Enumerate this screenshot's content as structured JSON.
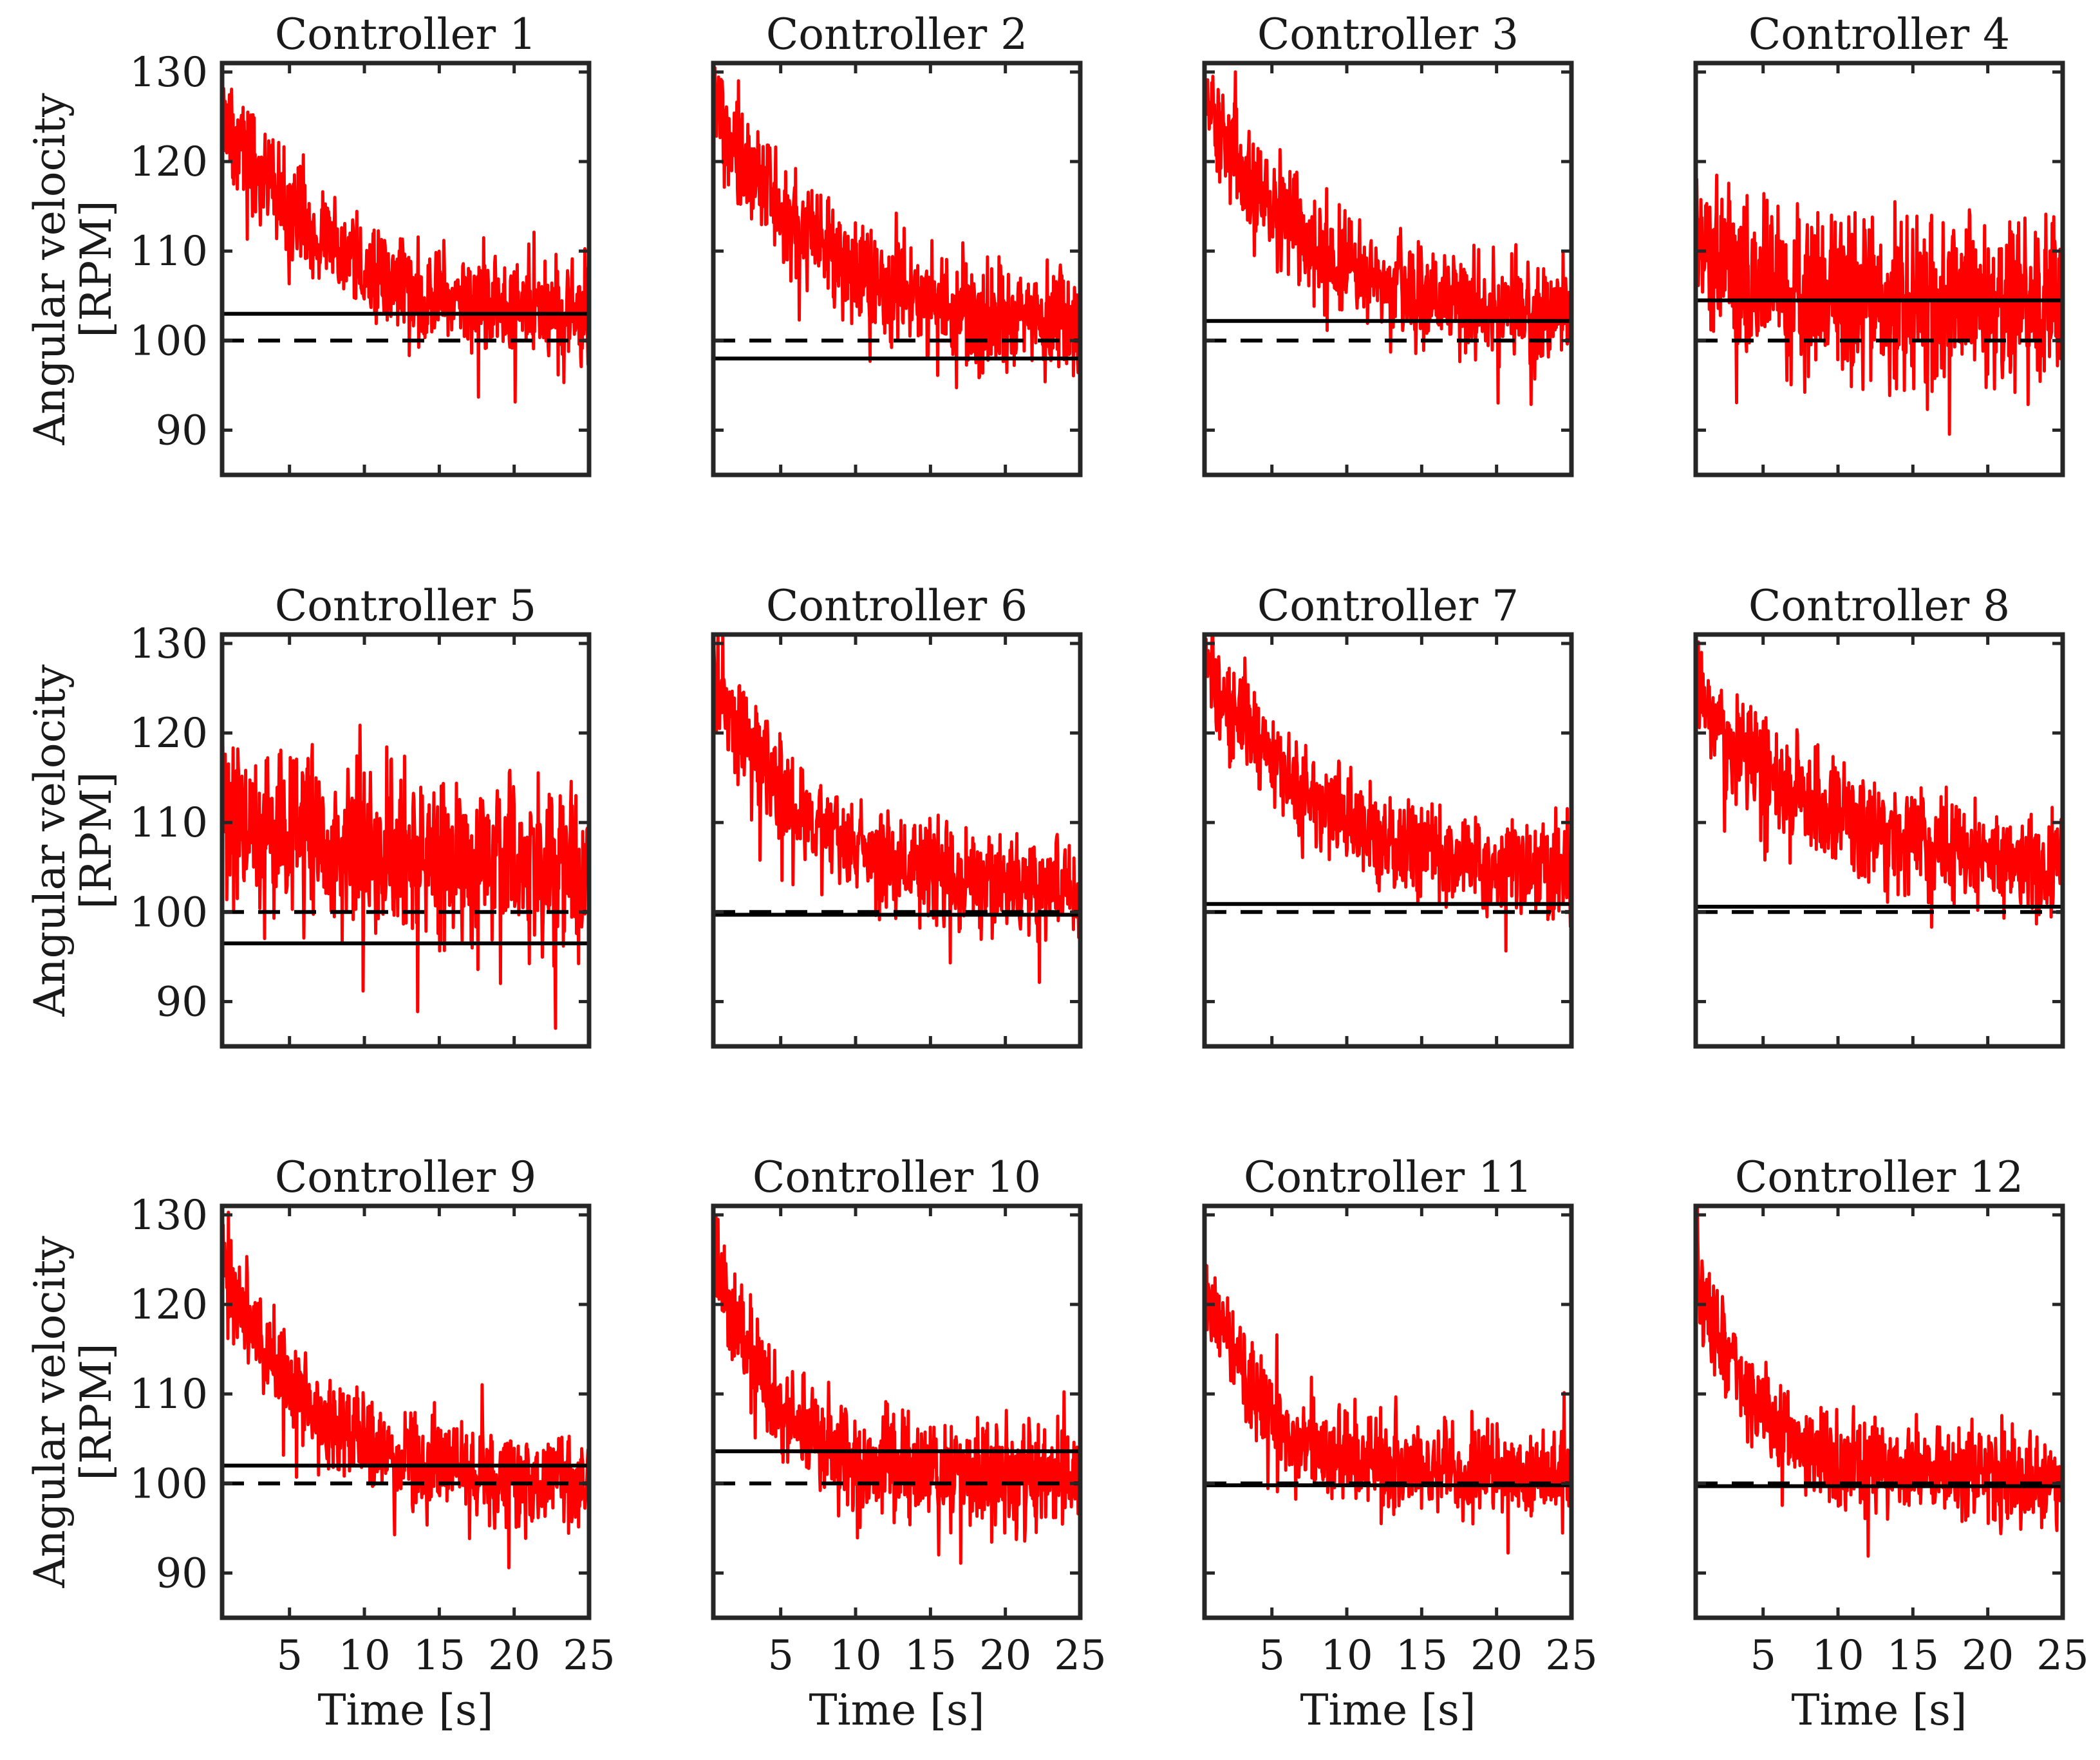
{
  "chart_data": {
    "type": "line",
    "layout": "grid 3 rows x 4 columns",
    "x_label": "Time [s]",
    "y_label_line1": "Angular velocity",
    "y_label_line2": "[RPM]",
    "xlim": [
      0.5,
      25
    ],
    "ylim": [
      85,
      131
    ],
    "x_ticks": [
      5,
      10,
      15,
      20,
      25
    ],
    "y_ticks": [
      90,
      100,
      110,
      120,
      130
    ],
    "setpoint": 100,
    "colors": {
      "trace": "#ff0000",
      "reference": "#000000"
    },
    "panels": [
      {
        "title": "Controller 1",
        "start": 126,
        "steady": 102,
        "tau": 7,
        "noise": 2.6,
        "final_value": 103.0
      },
      {
        "title": "Controller 2",
        "start": 127,
        "steady": 101,
        "tau": 7,
        "noise": 2.8,
        "final_value": 98.0
      },
      {
        "title": "Controller 3",
        "start": 127,
        "steady": 102,
        "tau": 7,
        "noise": 2.8,
        "final_value": 102.2
      },
      {
        "title": "Controller 4",
        "start": 113,
        "steady": 104,
        "tau": 3,
        "noise": 4.5,
        "final_value": 104.5
      },
      {
        "title": "Controller 5",
        "start": 111,
        "steady": 104,
        "tau": 12,
        "noise": 4.5,
        "final_value": 96.5
      },
      {
        "title": "Controller 6",
        "start": 127,
        "steady": 102,
        "tau": 6,
        "noise": 2.6,
        "final_value": 99.7
      },
      {
        "title": "Controller 7",
        "start": 127,
        "steady": 103,
        "tau": 8,
        "noise": 2.6,
        "final_value": 100.9
      },
      {
        "title": "Controller 8",
        "start": 124,
        "steady": 104,
        "tau": 9,
        "noise": 2.6,
        "final_value": 100.6
      },
      {
        "title": "Controller 9",
        "start": 125,
        "steady": 100,
        "tau": 5.5,
        "noise": 2.6,
        "final_value": 102.0
      },
      {
        "title": "Controller 10",
        "start": 127,
        "steady": 101,
        "tau": 3.5,
        "noise": 2.8,
        "final_value": 103.6
      },
      {
        "title": "Controller 11",
        "start": 123,
        "steady": 101,
        "tau": 4,
        "noise": 2.4,
        "final_value": 99.8
      },
      {
        "title": "Controller 12",
        "start": 124,
        "steady": 100.5,
        "tau": 4,
        "noise": 2.4,
        "final_value": 99.7
      }
    ]
  }
}
